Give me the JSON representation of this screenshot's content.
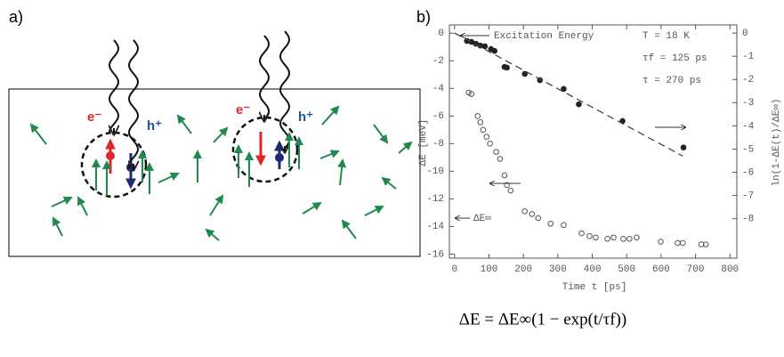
{
  "panel_a": {
    "label": "a)",
    "electron": "e⁻",
    "hole": "h⁺"
  },
  "chart_data": {
    "type": "scatter",
    "label": "b)",
    "xlabel": "Time t [ps]",
    "ylabel": "ΔE [meV]",
    "y2label": "ln(1-ΔE(t)/ΔE∞)",
    "xlim": [
      -15,
      820
    ],
    "ylim": [
      -16.3,
      0.6
    ],
    "y2lim": [
      -9.7,
      0.35
    ],
    "xticks": [
      0,
      100,
      200,
      300,
      400,
      500,
      600,
      700,
      800
    ],
    "yticks": [
      0,
      -2,
      -4,
      -6,
      -8,
      -10,
      -12,
      -14,
      -16
    ],
    "y2ticks": [
      0,
      -1,
      -2,
      -3,
      -4,
      -5,
      -6,
      -7,
      -8
    ],
    "annotations": [
      "Excitation Energy",
      "T = 18 K",
      "τf = 125 ps",
      "τ = 270 ps",
      "ΔE∞"
    ],
    "formula": "ΔE = ΔE∞(1 − exp(t/τf))",
    "series": [
      {
        "marker": "open",
        "color": "#555555",
        "axis": "y",
        "x": [
          41,
          49,
          67,
          75,
          83,
          93,
          103,
          121,
          132,
          145,
          152,
          163,
          204,
          225,
          243,
          279,
          317,
          369,
          392,
          410,
          444,
          462,
          490,
          508,
          529,
          599,
          648,
          663,
          717,
          730
        ],
        "values": [
          -4.3,
          -4.4,
          -6.0,
          -6.45,
          -7.0,
          -7.5,
          -8.0,
          -8.6,
          -9.1,
          -10.3,
          -11.0,
          -11.4,
          -12.9,
          -13.1,
          -13.4,
          -13.8,
          -13.9,
          -14.5,
          -14.7,
          -14.8,
          -14.9,
          -14.8,
          -14.9,
          -14.9,
          -14.8,
          -15.1,
          -15.2,
          -15.2,
          -15.3,
          -15.3
        ]
      },
      {
        "marker": "filled",
        "color": "#222222",
        "axis": "y2",
        "x": [
          36,
          49,
          62,
          75,
          88,
          106,
          116,
          145,
          152,
          204,
          248,
          317,
          361,
          488,
          665
        ],
        "values": [
          -0.34,
          -0.38,
          -0.46,
          -0.54,
          -0.57,
          -0.69,
          -0.77,
          -1.46,
          -1.49,
          -1.76,
          -2.03,
          -2.41,
          -3.07,
          -3.79,
          -4.93
        ]
      },
      {
        "marker": "dashed-line",
        "color": "#444444",
        "axis": "y2",
        "x": [
          0,
          663
        ],
        "values": [
          0,
          -5.3
        ]
      }
    ]
  }
}
